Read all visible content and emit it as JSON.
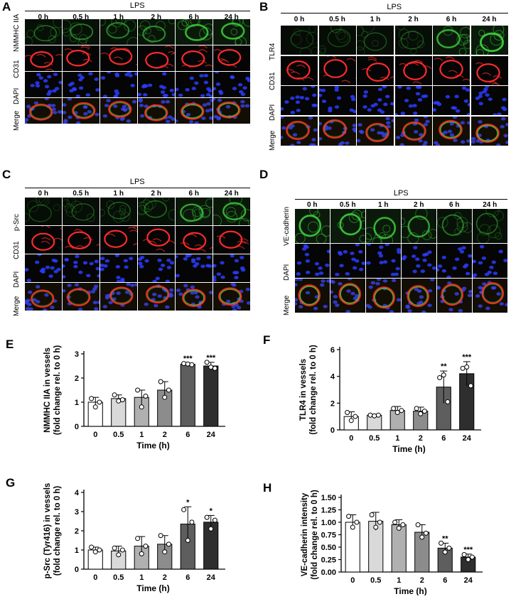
{
  "micrographs": [
    {
      "label": "A",
      "header": "LPS",
      "times": [
        "0 h",
        "0.5 h",
        "1 h",
        "2 h",
        "6 h",
        "24 h"
      ],
      "rows": [
        {
          "name": "NMMHC IIA",
          "channel": "green"
        },
        {
          "name": "CD31",
          "channel": "red"
        },
        {
          "name": "DAPI",
          "channel": "blue"
        },
        {
          "name": "Merge",
          "channel": "merge"
        }
      ],
      "intensity": {
        "green": [
          0.35,
          0.45,
          0.5,
          0.55,
          0.8,
          0.8
        ]
      }
    },
    {
      "label": "B",
      "header": "LPS",
      "times": [
        "0 h",
        "0.5 h",
        "1 h",
        "2 h",
        "6 h",
        "24 h"
      ],
      "rows": [
        {
          "name": "TLR4",
          "channel": "green"
        },
        {
          "name": "CD31",
          "channel": "red"
        },
        {
          "name": "DAPI",
          "channel": "blue"
        },
        {
          "name": "Merge",
          "channel": "merge"
        }
      ],
      "intensity": {
        "green": [
          0.15,
          0.2,
          0.25,
          0.25,
          0.75,
          0.9
        ]
      }
    },
    {
      "label": "C",
      "header": "LPS",
      "times": [
        "0 h",
        "0.5 h",
        "1 h",
        "2 h",
        "6 h",
        "24 h"
      ],
      "rows": [
        {
          "name": "p-Src",
          "channel": "green"
        },
        {
          "name": "CD31",
          "channel": "red"
        },
        {
          "name": "DAPI",
          "channel": "blue"
        },
        {
          "name": "Merge",
          "channel": "merge"
        }
      ],
      "intensity": {
        "green": [
          0.2,
          0.25,
          0.3,
          0.35,
          0.7,
          0.75
        ]
      }
    },
    {
      "label": "D",
      "header": "LPS",
      "times": [
        "0 h",
        "0.5 h",
        "1 h",
        "2 h",
        "6 h",
        "24 h"
      ],
      "rows": [
        {
          "name": "VE-cadherin",
          "channel": "green"
        },
        {
          "name": "DAPI",
          "channel": "blue"
        },
        {
          "name": "Merge",
          "channel": "merge"
        }
      ],
      "intensity": {
        "green": [
          0.85,
          0.85,
          0.8,
          0.7,
          0.45,
          0.35
        ]
      }
    }
  ],
  "colors": {
    "bars": [
      "#ffffff",
      "#d9d9d9",
      "#b0b0b0",
      "#8c8c8c",
      "#5e5e5e",
      "#2e2e2e"
    ],
    "green": "#3fd33f",
    "red": "#ff2a2a",
    "blue": "#2b3cff"
  },
  "chart_data": [
    {
      "label": "E",
      "type": "bar",
      "categories": [
        "0",
        "0.5",
        "1",
        "2",
        "6",
        "24"
      ],
      "values": [
        1.0,
        1.15,
        1.2,
        1.5,
        2.57,
        2.5
      ],
      "errors": [
        0.2,
        0.15,
        0.3,
        0.35,
        0.05,
        0.15
      ],
      "points": [
        [
          1.15,
          0.8,
          1.0
        ],
        [
          1.3,
          1.05,
          1.1
        ],
        [
          1.5,
          0.8,
          1.25
        ],
        [
          1.85,
          1.2,
          1.5
        ],
        [
          2.6,
          2.58,
          2.55
        ],
        [
          2.65,
          2.45,
          2.4
        ]
      ],
      "significance": [
        "",
        "",
        "",
        "",
        "***",
        "***"
      ],
      "xlabel": "Time (h)",
      "ylabel": [
        "NMMHC IIA in vessels",
        "(fold change rel. to 0 h)"
      ],
      "ylim": [
        0,
        3
      ],
      "yticks": [
        "0",
        "1",
        "2",
        "3"
      ]
    },
    {
      "label": "F",
      "type": "bar",
      "categories": [
        "0",
        "0.5",
        "1",
        "2",
        "6",
        "24"
      ],
      "values": [
        1.0,
        1.1,
        1.45,
        1.4,
        3.2,
        4.2
      ],
      "errors": [
        0.35,
        0.05,
        0.3,
        0.3,
        1.2,
        0.9
      ],
      "points": [
        [
          1.3,
          0.7,
          1.0
        ],
        [
          1.1,
          1.05,
          1.1
        ],
        [
          1.6,
          1.3,
          1.45
        ],
        [
          1.6,
          1.2,
          1.4
        ],
        [
          3.9,
          4.1,
          2.1
        ],
        [
          4.6,
          4.7,
          3.3
        ]
      ],
      "significance": [
        "",
        "",
        "",
        "",
        "**",
        "***"
      ],
      "xlabel": "Time (h)",
      "ylabel": [
        "TLR4 in vessels",
        "(fold change rel. to 0 h)"
      ],
      "ylim": [
        0,
        6
      ],
      "yticks": [
        "0",
        "2",
        "4",
        "6"
      ]
    },
    {
      "label": "G",
      "type": "bar",
      "categories": [
        "0",
        "0.5",
        "1",
        "2",
        "6",
        "24"
      ],
      "values": [
        1.0,
        0.95,
        1.2,
        1.3,
        2.35,
        2.45
      ],
      "errors": [
        0.15,
        0.25,
        0.5,
        0.45,
        0.9,
        0.35
      ],
      "points": [
        [
          1.15,
          0.9,
          1.0
        ],
        [
          1.1,
          0.75,
          1.0
        ],
        [
          1.6,
          0.8,
          1.2
        ],
        [
          1.75,
          0.9,
          1.3
        ],
        [
          3.1,
          1.5,
          2.45
        ],
        [
          2.7,
          2.1,
          2.55
        ]
      ],
      "significance": [
        "",
        "",
        "",
        "",
        "*",
        "*"
      ],
      "xlabel": "Time (h)",
      "ylabel": [
        "p-Src (Tyr416) in vessels",
        "(fold change rel. to 0 h)"
      ],
      "ylim": [
        0,
        4
      ],
      "yticks": [
        "0",
        "1",
        "2",
        "3",
        "4"
      ]
    },
    {
      "label": "H",
      "type": "bar",
      "categories": [
        "0",
        "0.5",
        "1",
        "2",
        "6",
        "24"
      ],
      "values": [
        1.0,
        1.02,
        0.95,
        0.8,
        0.48,
        0.3
      ],
      "errors": [
        0.15,
        0.18,
        0.1,
        0.15,
        0.1,
        0.06
      ],
      "points": [
        [
          1.12,
          0.9,
          1.0
        ],
        [
          1.15,
          0.9,
          1.0
        ],
        [
          1.0,
          0.88,
          0.95
        ],
        [
          0.95,
          0.7,
          0.78
        ],
        [
          0.58,
          0.4,
          0.48
        ],
        [
          0.35,
          0.25,
          0.3
        ]
      ],
      "significance": [
        "",
        "",
        "",
        "",
        "**",
        "***"
      ],
      "xlabel": "Time (h)",
      "ylabel": [
        "VE-cadherin intensity",
        "(fold change rel. to 0 h)"
      ],
      "ylim": [
        0,
        1.5
      ],
      "yticks": [
        "0.00",
        "0.25",
        "0.50",
        "0.75",
        "1.00",
        "1.25",
        "1.50"
      ]
    }
  ]
}
